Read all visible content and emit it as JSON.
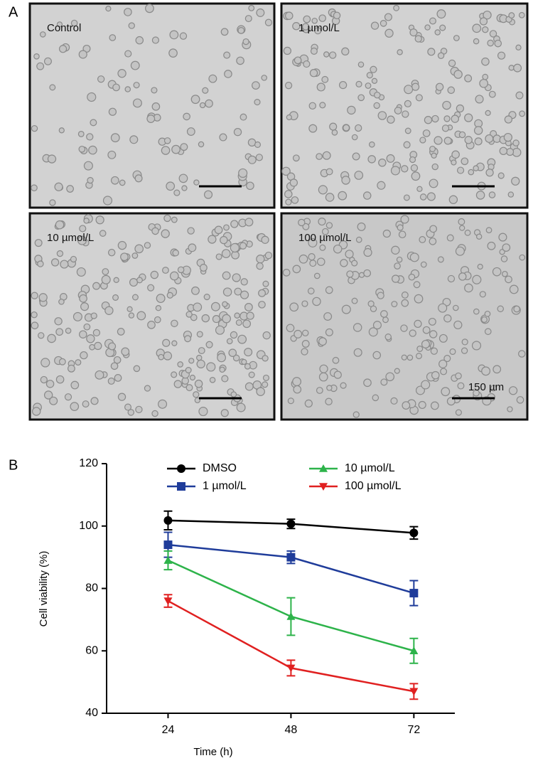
{
  "panel_a": {
    "label": "A",
    "images": [
      {
        "label": "Control"
      },
      {
        "label": "1 µmol/L"
      },
      {
        "label": "10 µmol/L"
      },
      {
        "label": "100 µmol/L"
      }
    ],
    "scale_bar": "150 µm"
  },
  "panel_b": {
    "label": "B"
  },
  "chart_data": {
    "type": "line",
    "x_label": "Time (h)",
    "y_label": "Cell viability (%)",
    "x": [
      24,
      48,
      72
    ],
    "xlim": [
      12,
      80
    ],
    "xticks": [
      24,
      48,
      72
    ],
    "ylim": [
      40,
      120
    ],
    "yticks": [
      40,
      60,
      80,
      100,
      120
    ],
    "series": [
      {
        "name": "DMSO",
        "color": "#000000",
        "marker": "circle",
        "values": [
          101.8,
          100.7,
          97.8
        ],
        "errors": [
          3,
          1.5,
          2
        ]
      },
      {
        "name": "1 µmol/L",
        "color": "#1f3c9a",
        "marker": "square",
        "values": [
          94,
          90,
          78.5
        ],
        "errors": [
          4,
          2,
          4
        ]
      },
      {
        "name": "10 µmol/L",
        "color": "#2db34a",
        "marker": "triangle-up",
        "values": [
          89,
          71,
          60
        ],
        "errors": [
          3,
          6,
          4
        ]
      },
      {
        "name": "100 µmol/L",
        "color": "#e02020",
        "marker": "triangle-down",
        "values": [
          76,
          54.5,
          47
        ],
        "errors": [
          2,
          2.5,
          2.5
        ]
      }
    ]
  }
}
